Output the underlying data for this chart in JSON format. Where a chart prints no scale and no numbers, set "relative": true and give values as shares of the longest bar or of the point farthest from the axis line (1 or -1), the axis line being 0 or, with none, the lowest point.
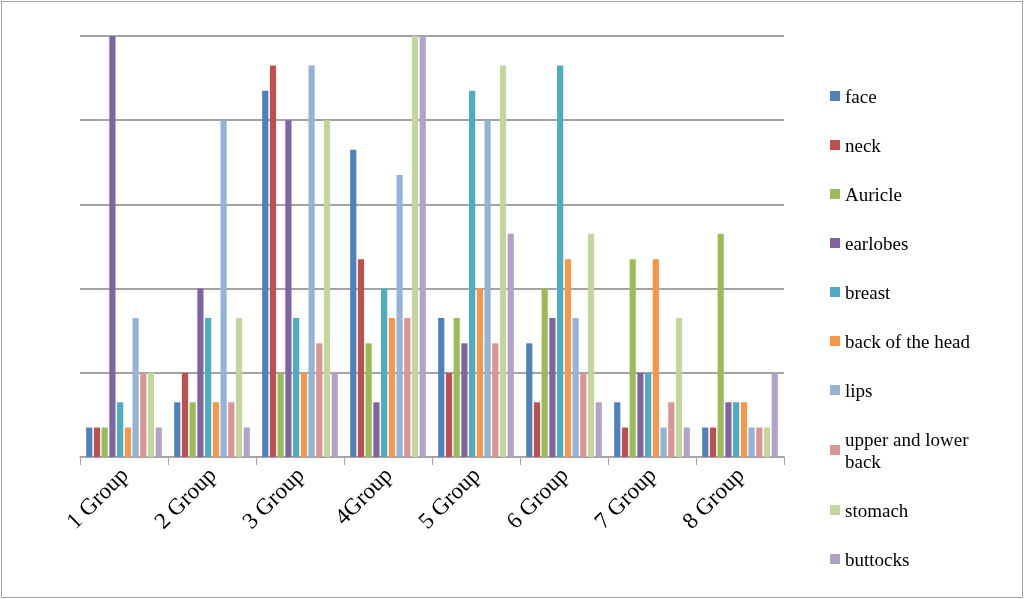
{
  "chart_data": {
    "type": "bar",
    "relative": true,
    "grid": "y",
    "legend": "right",
    "categories": [
      "1 Group",
      "2 Group",
      "3 Group",
      "4Group",
      "5 Group",
      "6 Group",
      "7 Group",
      "8 Group"
    ],
    "series": [
      {
        "name": "face",
        "color": "#4f81bd",
        "values": [
          0.07,
          0.13,
          0.87,
          0.73,
          0.33,
          0.27,
          0.13,
          0.07
        ]
      },
      {
        "name": "neck",
        "color": "#c0504d",
        "values": [
          0.07,
          0.2,
          0.93,
          0.47,
          0.2,
          0.13,
          0.07,
          0.07
        ]
      },
      {
        "name": "Auricle",
        "color": "#9bbb59",
        "values": [
          0.07,
          0.13,
          0.2,
          0.27,
          0.33,
          0.4,
          0.47,
          0.53
        ]
      },
      {
        "name": "earlobes",
        "color": "#8064a2",
        "values": [
          1,
          0.4,
          0.8,
          0.13,
          0.27,
          0.33,
          0.2,
          0.13
        ]
      },
      {
        "name": "breast",
        "color": "#4bacc6",
        "values": [
          0.13,
          0.33,
          0.33,
          0.4,
          0.87,
          0.93,
          0.2,
          0.13
        ]
      },
      {
        "name": "back of the head",
        "color": "#f79646",
        "values": [
          0.07,
          0.13,
          0.2,
          0.33,
          0.4,
          0.47,
          0.47,
          0.13
        ]
      },
      {
        "name": "lips",
        "color": "#95b3d7",
        "values": [
          0.33,
          0.8,
          0.93,
          0.67,
          0.8,
          0.33,
          0.07,
          0.07
        ]
      },
      {
        "name": "upper and lower back",
        "color": "#d99694",
        "values": [
          0.2,
          0.13,
          0.27,
          0.33,
          0.27,
          0.2,
          0.13,
          0.07
        ]
      },
      {
        "name": "stomach",
        "color": "#c3d69b",
        "values": [
          0.2,
          0.33,
          0.8,
          1,
          0.93,
          0.53,
          0.33,
          0.07
        ]
      },
      {
        "name": "buttocks",
        "color": "#b3a2c7",
        "values": [
          0.07,
          0.07,
          0.2,
          1,
          0.53,
          0.13,
          0.07,
          0.2
        ]
      }
    ]
  }
}
